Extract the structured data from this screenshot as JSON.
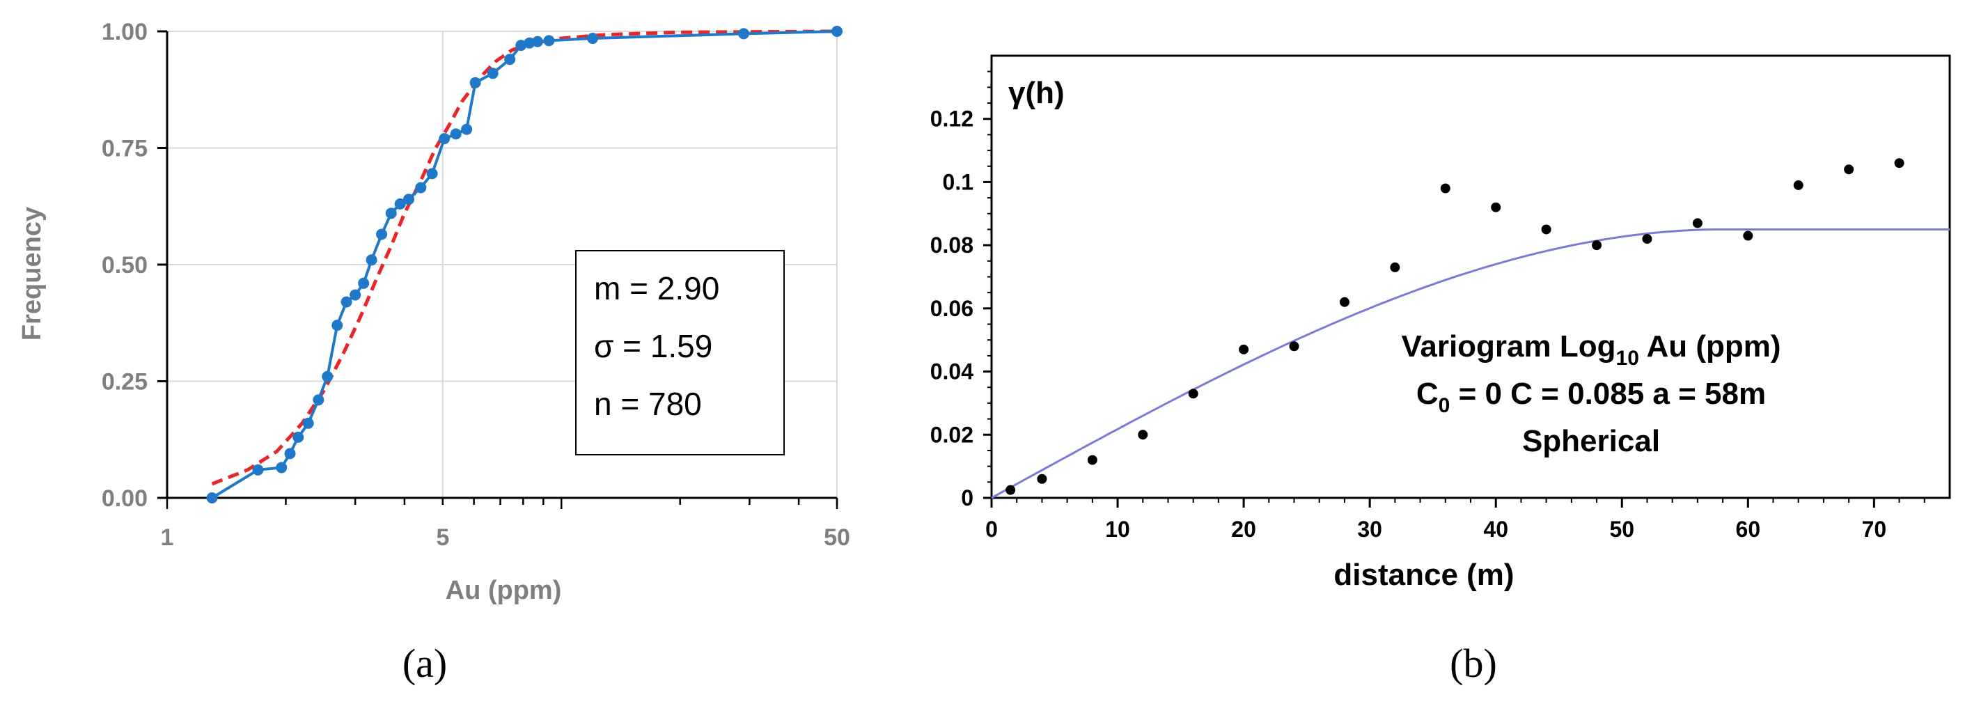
{
  "chart_data": [
    {
      "type": "line",
      "panel_label": "(a)",
      "xlabel": "Au (ppm)",
      "ylabel": "Frequency",
      "x_scale": "log",
      "xlim": [
        1,
        50
      ],
      "ylim": [
        0,
        1
      ],
      "x_ticks": [
        "1",
        "5",
        "50"
      ],
      "y_ticks": [
        "0.00",
        "0.25",
        "0.50",
        "0.75",
        "1.00"
      ],
      "grid": true,
      "colors": {
        "series": "#1f78c8",
        "fit": "#e8262a"
      },
      "legend_lines": [
        "m = 2.90",
        "σ  = 1.59",
        "n  = 780"
      ],
      "series": [
        {
          "x": [
            1.3,
            1.7,
            1.95,
            2.05,
            2.15,
            2.28,
            2.42,
            2.55,
            2.7,
            2.85,
            3.0,
            3.15,
            3.3,
            3.5,
            3.7,
            3.9,
            4.1,
            4.4,
            4.7,
            5.05,
            5.4,
            5.75,
            6.05,
            6.7,
            7.4,
            7.9,
            8.3,
            8.7,
            9.3,
            12.0,
            29.0,
            50.0
          ],
          "y": [
            0.0,
            0.06,
            0.065,
            0.095,
            0.13,
            0.16,
            0.21,
            0.26,
            0.37,
            0.42,
            0.435,
            0.46,
            0.51,
            0.565,
            0.61,
            0.63,
            0.64,
            0.665,
            0.695,
            0.77,
            0.78,
            0.79,
            0.89,
            0.91,
            0.94,
            0.97,
            0.975,
            0.978,
            0.98,
            0.985,
            0.995,
            1.0
          ]
        },
        {
          "type": "cdf_fit",
          "x": [
            1.3,
            1.6,
            1.9,
            2.2,
            2.5,
            2.8,
            3.1,
            3.4,
            3.7,
            4.0,
            4.4,
            4.8,
            5.2,
            5.6,
            6.2,
            6.8,
            7.5,
            8.5,
            10.0,
            13.0,
            20.0,
            50.0
          ],
          "y": [
            0.03,
            0.06,
            0.1,
            0.16,
            0.23,
            0.31,
            0.39,
            0.47,
            0.54,
            0.61,
            0.68,
            0.75,
            0.8,
            0.85,
            0.9,
            0.935,
            0.96,
            0.975,
            0.985,
            0.993,
            0.998,
            1.0
          ]
        }
      ]
    },
    {
      "type": "scatter",
      "panel_label": "(b)",
      "xlabel": "distance (m)",
      "ylabel": "γ(h)",
      "xlim": [
        0,
        76
      ],
      "ylim": [
        0,
        0.14
      ],
      "x_ticks": [
        "0",
        "10",
        "20",
        "30",
        "40",
        "50",
        "60",
        "70"
      ],
      "y_ticks": [
        "0",
        "0.02",
        "0.04",
        "0.06",
        "0.08",
        "0.1",
        "0.12"
      ],
      "colors": {
        "points": "#000000",
        "model": "#7b7bd6"
      },
      "annotation": {
        "line1": "Variogram Log",
        "line1_sub": "10",
        "line1_rest": " Au (ppm)",
        "line2_pre": "C",
        "line2_sub": "0",
        "line2_rest": " = 0 C = 0.085 a = 58m",
        "line3": "Spherical"
      },
      "series": [
        {
          "x": [
            1.5,
            4,
            8,
            12,
            16,
            20,
            24,
            28,
            32,
            36,
            40,
            44,
            48,
            52,
            56,
            60,
            64,
            68,
            72
          ],
          "y": [
            0.0025,
            0.006,
            0.012,
            0.02,
            0.033,
            0.047,
            0.048,
            0.062,
            0.073,
            0.098,
            0.092,
            0.085,
            0.08,
            0.082,
            0.087,
            0.083,
            0.099,
            0.104,
            0.106
          ]
        },
        {
          "model": "spherical",
          "nugget": 0,
          "sill": 0.085,
          "range": 58
        }
      ]
    }
  ]
}
